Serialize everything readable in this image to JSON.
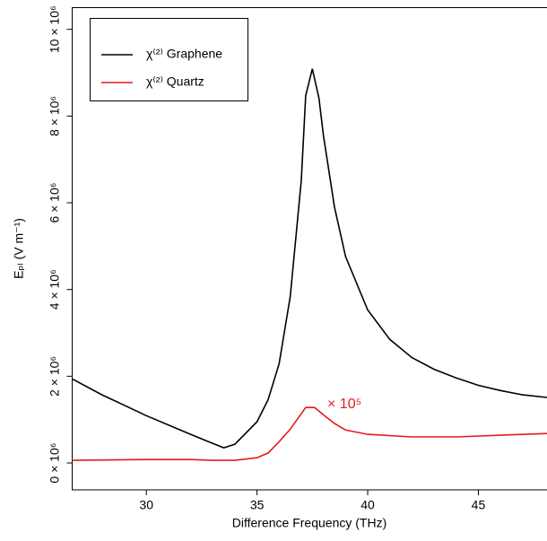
{
  "chart_data": {
    "type": "line",
    "x_label": "Difference Frequency (THz)",
    "y_label": "Eₚₗ (V m⁻¹)",
    "annotation": "× 10⁵",
    "xlim": [
      26.65,
      48.1
    ],
    "xticks": [
      30,
      35,
      40,
      45
    ],
    "ylim": [
      -620000,
      10500000
    ],
    "yticks": [
      {
        "value": 0,
        "label": "0 × 10⁶"
      },
      {
        "value": 2000000,
        "label": "2 × 10⁶"
      },
      {
        "value": 4000000,
        "label": "4 × 10⁶"
      },
      {
        "value": 6000000,
        "label": "6 × 10⁶"
      },
      {
        "value": 8000000,
        "label": "8 × 10⁶"
      },
      {
        "value": 10000000,
        "label": "10 × 10⁶"
      }
    ],
    "legend": "top-left",
    "series": [
      {
        "name": "χ⁽²⁾ Graphene",
        "color": "#000000",
        "x": [
          26.65,
          28,
          30,
          32,
          33,
          33.5,
          34,
          35,
          35.5,
          36,
          36.5,
          37,
          37.2,
          37.5,
          37.8,
          38,
          38.5,
          39,
          40,
          41,
          42,
          43,
          44,
          45,
          46,
          47,
          48.1
        ],
        "values": [
          1940000,
          1570000,
          1090000,
          660000,
          450000,
          350000,
          430000,
          950000,
          1460000,
          2290000,
          3840000,
          6520000,
          8470000,
          9090000,
          8410000,
          7550000,
          5900000,
          4760000,
          3530000,
          2850000,
          2430000,
          2160000,
          1960000,
          1790000,
          1670000,
          1570000,
          1510000
        ]
      },
      {
        "name": "χ⁽²⁾ Quartz",
        "color": "#e8191b",
        "x": [
          26.65,
          30,
          32,
          33,
          34,
          35,
          35.5,
          36,
          36.5,
          37.2,
          37.6,
          38,
          38.5,
          39,
          40,
          42,
          44,
          46,
          48.1
        ],
        "values": [
          60000,
          80000,
          80000,
          60000,
          60000,
          120000,
          230000,
          490000,
          780000,
          1280000,
          1280000,
          1110000,
          910000,
          760000,
          660000,
          600000,
          600000,
          640000,
          680000
        ]
      }
    ]
  }
}
